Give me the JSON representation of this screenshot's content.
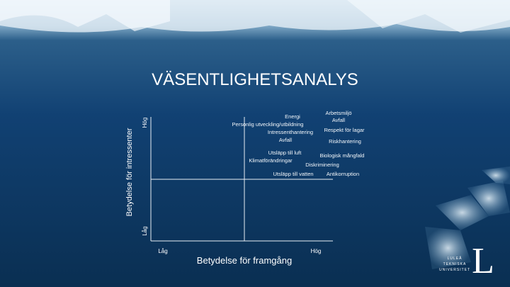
{
  "header": {
    "title": "VÄSENTLIGHETSANALYS"
  },
  "matrix": {
    "y_axis": {
      "label": "Betydelse för intressenter",
      "high": "Hög",
      "low": "Låg"
    },
    "x_axis": {
      "label": "Betydelse för framgång",
      "low": "Låg",
      "high": "Hög"
    },
    "items": [
      "Arbetsmiljö",
      "Energi",
      "Avfall",
      "Personlig utveckling/utbildning",
      "Respekt för lagar",
      "Intressenthantering",
      "Avfall",
      "Riskhantering",
      "Utsläpp till luft",
      "Biologisk mångfald",
      "Klimatförändringar",
      "Diskriminering",
      "Utsläpp till vatten",
      "Antikorruption"
    ]
  },
  "logo": {
    "mark": "L",
    "lines": [
      "LULEÅ",
      "TEKNISKA",
      "UNIVERSITET"
    ]
  }
}
